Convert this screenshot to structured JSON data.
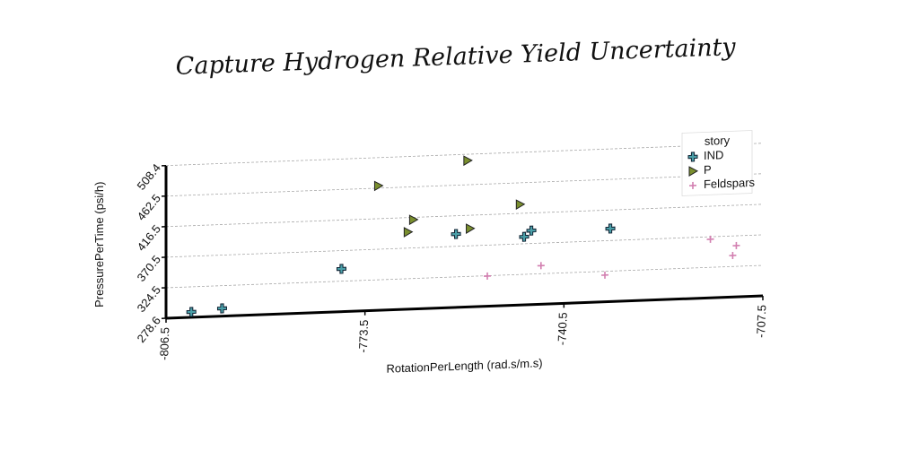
{
  "chart_data": {
    "type": "scatter",
    "title": "Capture Hydrogen Relative Yield Uncertainty",
    "x_label": "RotationPerLength (rad.s/m.s)",
    "y_label": "PressurePerTime (psi/h)",
    "xlim": [
      -806.5,
      -707.5
    ],
    "xticks": [
      -806.5,
      -773.5,
      -740.5,
      -707.5
    ],
    "ylim": [
      278.6,
      535
    ],
    "yticks": [
      278.6,
      324.5,
      370.5,
      416.5,
      462.5,
      508.4
    ],
    "grid": true,
    "legend_title": "story",
    "legend_position": "upper right",
    "series": [
      {
        "name": "IND",
        "color": "#4a9fa8",
        "marker": "plus",
        "x": [
          -802.3,
          -797.2,
          -777.4,
          -758.4,
          -747.1,
          -745.9,
          -732.8
        ],
        "values": [
          286.7,
          290.3,
          343,
          389,
          381,
          390,
          388.5
        ]
      },
      {
        "name": "P",
        "color": "#7a8f2e",
        "marker": "triangle",
        "x": [
          -771.3,
          -766.4,
          -765.5,
          -756.5,
          -756.1,
          -747.8
        ],
        "values": [
          466,
          394.7,
          413,
          499,
          396.5,
          430
        ]
      },
      {
        "name": "Feldspars",
        "color": "#d27fb0",
        "marker": "thin-plus",
        "x": [
          -753.2,
          -744.3,
          -733.7,
          -716.2,
          -712.5,
          -711.9
        ],
        "values": [
          324,
          336.6,
          318.8,
          366.8,
          341.1,
          355.8
        ]
      }
    ]
  }
}
